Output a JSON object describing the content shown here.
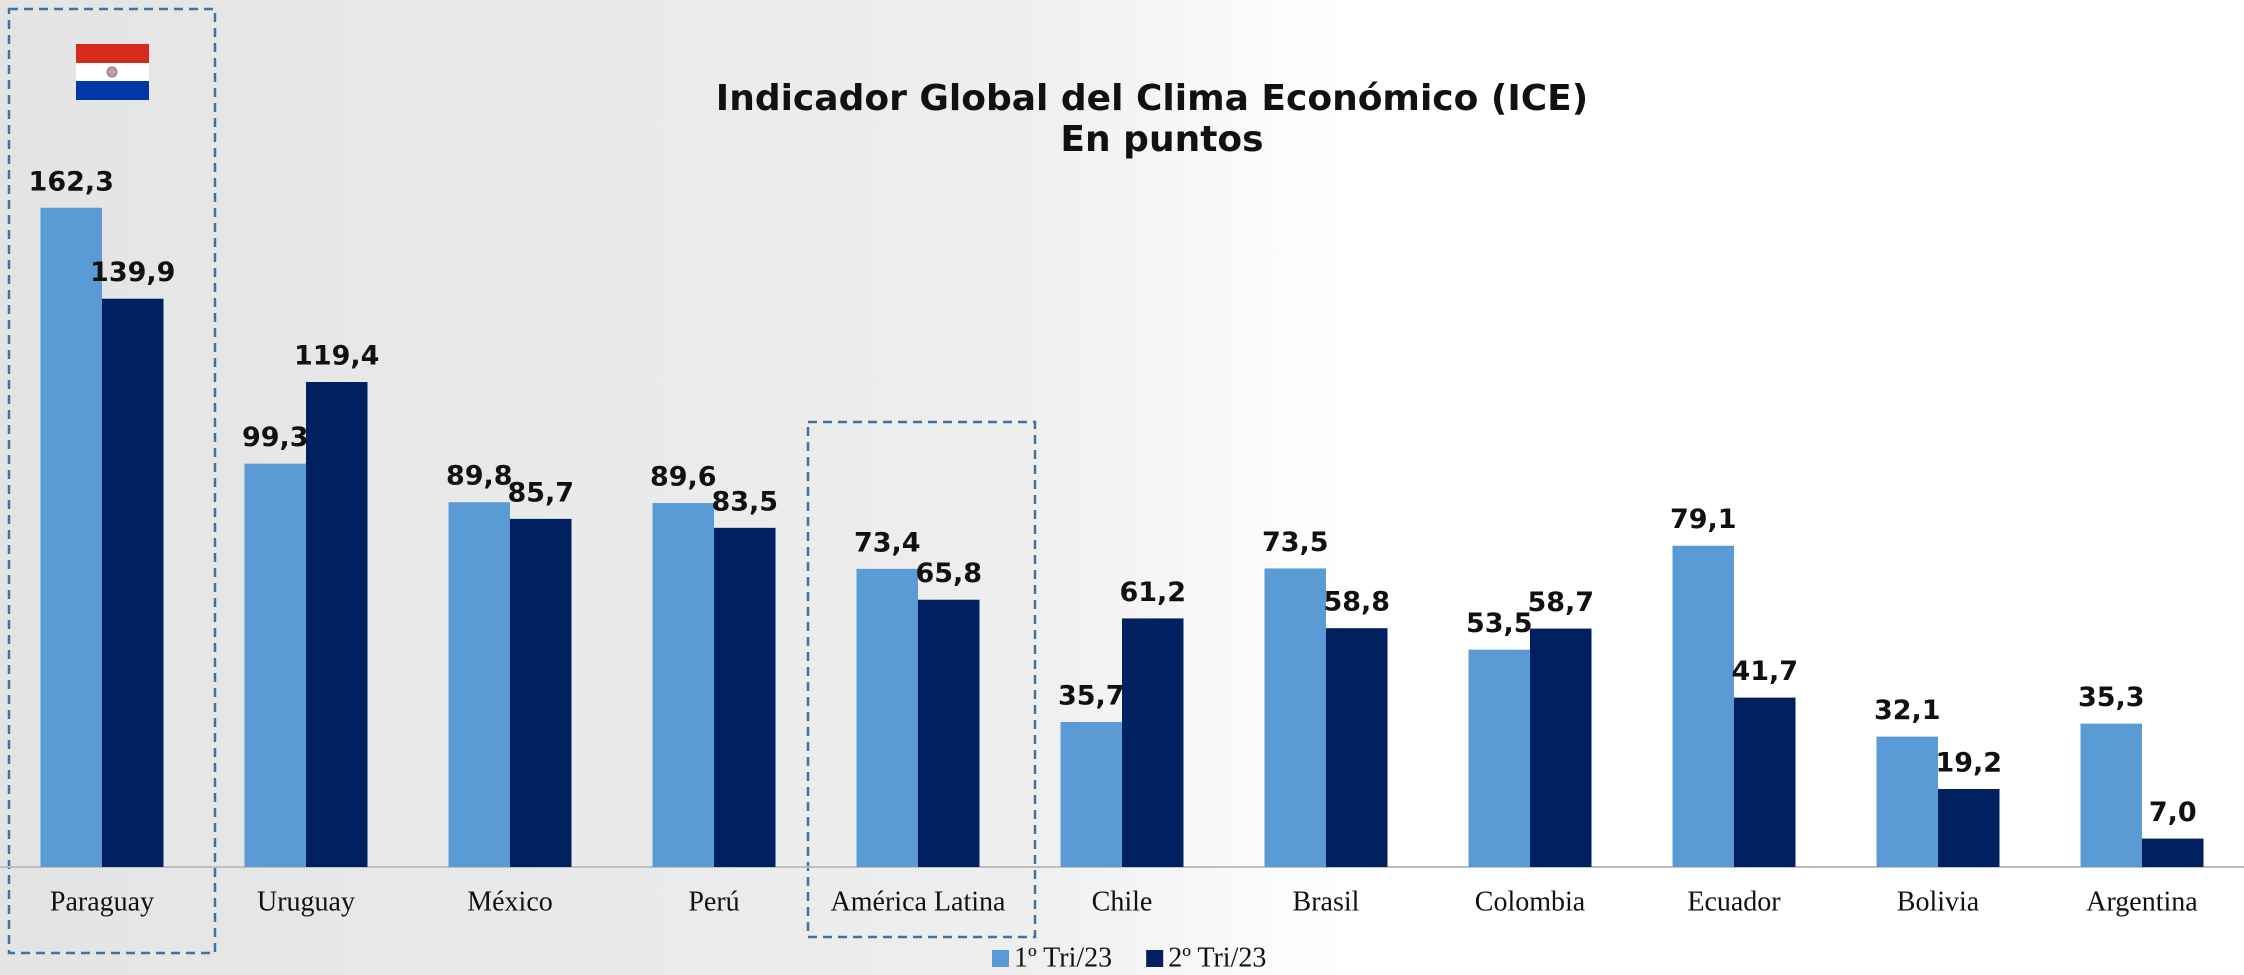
{
  "chart_data": {
    "type": "bar",
    "title": "Indicador Global del Clima Económico (ICE)",
    "subtitle": "En puntos",
    "categories": [
      "Paraguay",
      "Uruguay",
      "México",
      "Perú",
      "América Latina",
      "Chile",
      "Brasil",
      "Colombia",
      "Ecuador",
      "Bolivia",
      "Argentina"
    ],
    "series": [
      {
        "name": "1º Tri/23",
        "color": "#5b9bd5",
        "values": [
          162.3,
          99.3,
          89.8,
          89.6,
          73.4,
          35.7,
          73.5,
          53.5,
          79.1,
          32.1,
          35.3
        ],
        "value_labels": [
          "162,3",
          "99,3",
          "89,8",
          "89,6",
          "73,4",
          "35,7",
          "73,5",
          "53,5",
          "79,1",
          "32,1",
          "35,3"
        ]
      },
      {
        "name": "2º Tri/23",
        "color": "#002060",
        "values": [
          139.9,
          119.4,
          85.7,
          83.5,
          65.8,
          61.2,
          58.8,
          58.7,
          41.7,
          19.2,
          7.0
        ],
        "value_labels": [
          "139,9",
          "119,4",
          "85,7",
          "83,5",
          "65,8",
          "61,2",
          "58,8",
          "58,7",
          "41,7",
          "19,2",
          "7,0"
        ]
      }
    ],
    "ylim": [
      0,
      210
    ]
  }
}
